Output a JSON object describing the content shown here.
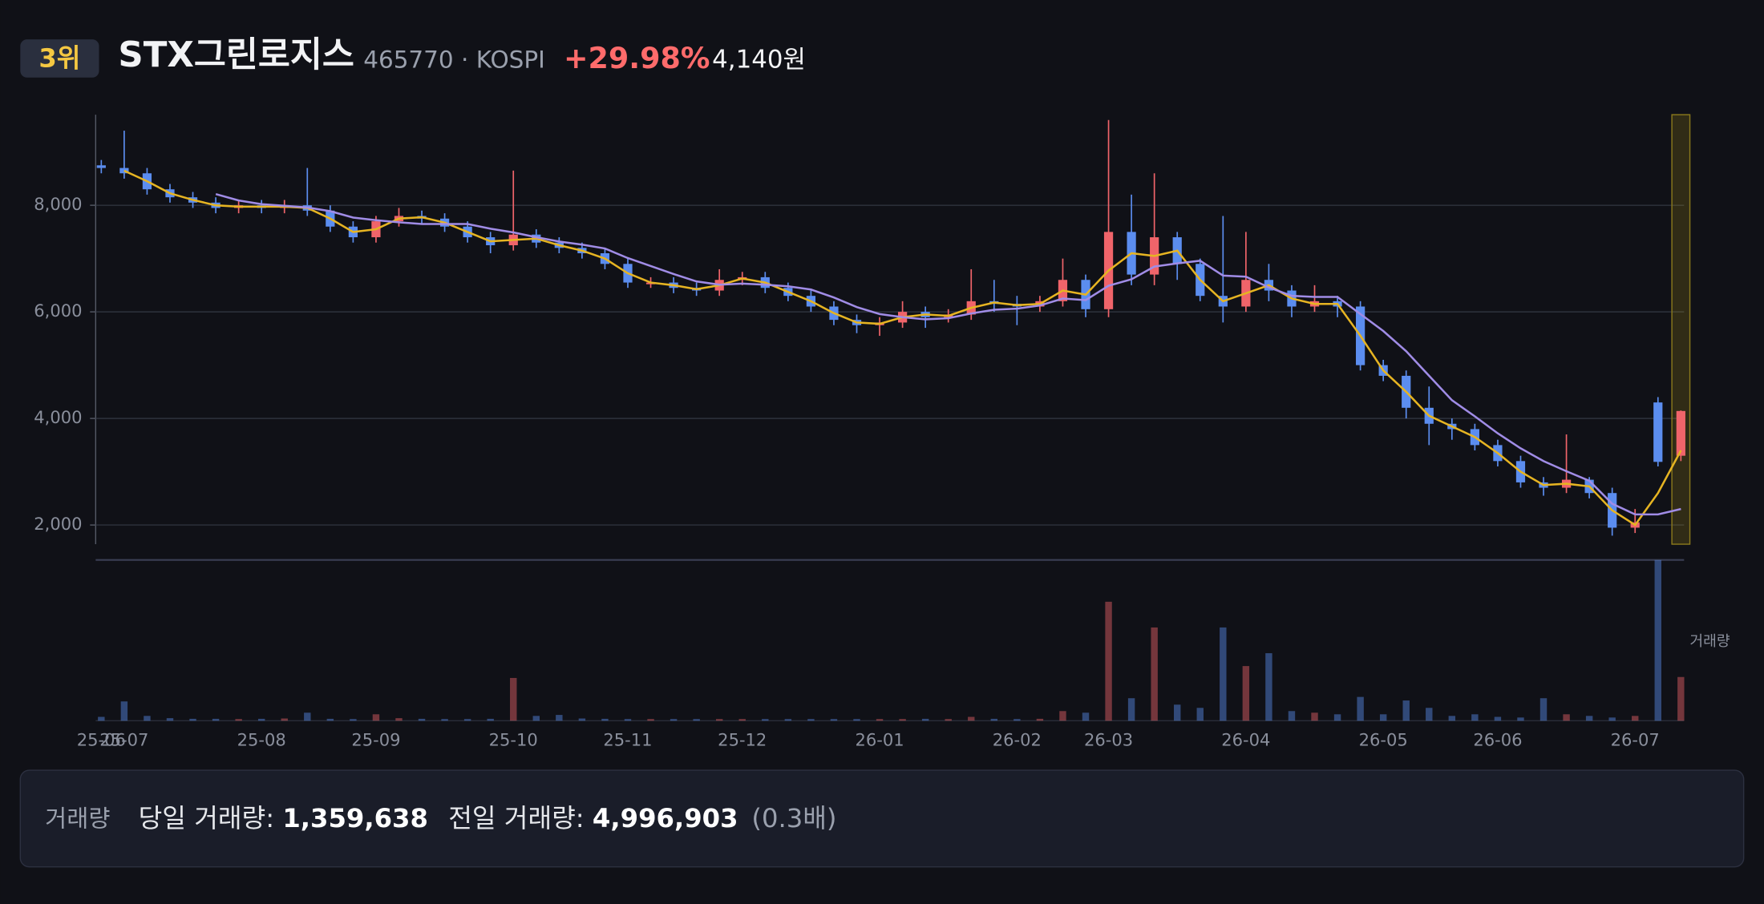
{
  "header": {
    "rank": "3위",
    "name": "STX그린로지스",
    "code": "465770 · KOSPI",
    "change": "+29.98%",
    "price": "4,140원"
  },
  "chart_data": {
    "type": "candlestick",
    "categories": [
      "25-06",
      "25-07",
      null,
      null,
      null,
      null,
      null,
      "25-08",
      null,
      null,
      null,
      null,
      "25-09",
      null,
      null,
      null,
      null,
      null,
      "25-10",
      null,
      null,
      null,
      null,
      "25-11",
      null,
      null,
      null,
      null,
      "25-12",
      null,
      null,
      null,
      null,
      null,
      "26-01",
      null,
      null,
      null,
      null,
      null,
      "26-02",
      null,
      null,
      null,
      "26-03",
      null,
      null,
      null,
      null,
      null,
      "26-04",
      null,
      null,
      null,
      null,
      null,
      "26-05",
      null,
      null,
      null,
      null,
      "26-06",
      null,
      null,
      null,
      null,
      null,
      "26-07",
      null,
      null
    ],
    "open": [
      8750,
      8700,
      8600,
      8300,
      8150,
      8050,
      7950,
      8000,
      7950,
      8000,
      7900,
      7600,
      7400,
      7700,
      7800,
      7750,
      7600,
      7400,
      7250,
      7450,
      7300,
      7200,
      7100,
      6900,
      6550,
      6550,
      6450,
      6400,
      6600,
      6650,
      6450,
      6300,
      6100,
      5850,
      5750,
      5800,
      6000,
      5900,
      5950,
      6200,
      6150,
      6100,
      6200,
      6600,
      6050,
      7500,
      6700,
      7400,
      6900,
      6300,
      6100,
      6600,
      6400,
      6100,
      6200,
      6100,
      5000,
      4800,
      4200,
      3900,
      3800,
      3500,
      3200,
      2800,
      2700,
      2850,
      2600,
      1950,
      4300,
      3300
    ],
    "high": [
      8850,
      9400,
      8700,
      8400,
      8250,
      8150,
      8100,
      8100,
      8100,
      8700,
      8000,
      7700,
      7800,
      7950,
      7900,
      7850,
      7700,
      7500,
      8650,
      7550,
      7400,
      7300,
      7200,
      7000,
      6650,
      6650,
      6550,
      6800,
      6750,
      6750,
      6550,
      6400,
      6200,
      5950,
      5900,
      6200,
      6100,
      6050,
      6800,
      6600,
      6300,
      6300,
      7000,
      6700,
      9600,
      8200,
      8600,
      7500,
      7000,
      7800,
      7500,
      6900,
      6500,
      6500,
      6300,
      6200,
      5100,
      4900,
      4600,
      4000,
      3900,
      3600,
      3300,
      2900,
      3700,
      2900,
      2700,
      2300,
      4400,
      4150
    ],
    "low": [
      8600,
      8500,
      8200,
      8050,
      7950,
      7850,
      7850,
      7850,
      7850,
      7800,
      7500,
      7300,
      7300,
      7600,
      7650,
      7500,
      7300,
      7100,
      7150,
      7200,
      7100,
      7000,
      6800,
      6450,
      6450,
      6350,
      6300,
      6300,
      6500,
      6350,
      6200,
      6000,
      5750,
      5600,
      5550,
      5700,
      5700,
      5800,
      5850,
      6000,
      5750,
      6000,
      6100,
      5900,
      5900,
      6500,
      6500,
      6600,
      6200,
      5800,
      6000,
      6200,
      5900,
      6000,
      5900,
      4900,
      4700,
      4000,
      3500,
      3600,
      3400,
      3100,
      2700,
      2550,
      2600,
      2500,
      1800,
      1850,
      3100,
      3200
    ],
    "close": [
      8700,
      8600,
      8300,
      8150,
      8050,
      7950,
      8000,
      7950,
      8000,
      7900,
      7600,
      7400,
      7700,
      7800,
      7750,
      7600,
      7400,
      7250,
      7450,
      7300,
      7200,
      7100,
      6900,
      6550,
      6550,
      6450,
      6400,
      6600,
      6650,
      6450,
      6300,
      6100,
      5850,
      5750,
      5800,
      6000,
      5900,
      5950,
      6200,
      6150,
      6100,
      6200,
      6600,
      6050,
      7500,
      6700,
      7400,
      6900,
      6300,
      6100,
      6600,
      6400,
      6100,
      6200,
      6100,
      5000,
      4800,
      4200,
      3900,
      3800,
      3500,
      3200,
      2800,
      2700,
      2850,
      2600,
      1950,
      2050,
      3185,
      4140
    ],
    "up_color": "#f0646a",
    "down_color": "#5b8def",
    "ylim": [
      1640,
      9700
    ],
    "yticks": [
      {
        "value": 2000,
        "label": "2,000"
      },
      {
        "value": 4000,
        "label": "4,000"
      },
      {
        "value": 6000,
        "label": "6,000"
      },
      {
        "value": 8000,
        "label": "8,000"
      }
    ],
    "grid": true,
    "moving_averages": [
      {
        "color": "#e6b422",
        "values": [
          null,
          8650,
          8450,
          8225,
          8100,
          8000,
          7975,
          7975,
          7975,
          7950,
          7750,
          7500,
          7550,
          7750,
          7775,
          7675,
          7500,
          7325,
          7350,
          7375,
          7250,
          7150,
          7000,
          6725,
          6550,
          6500,
          6425,
          6500,
          6625,
          6550,
          6375,
          6200,
          5975,
          5800,
          5775,
          5900,
          5950,
          5925,
          6075,
          6175,
          6125,
          6150,
          6400,
          6325,
          6775,
          7100,
          7050,
          7150,
          6600,
          6200,
          6350,
          6500,
          6250,
          6150,
          6150,
          5550,
          4900,
          4500,
          4050,
          3850,
          3650,
          3350,
          3000,
          2750,
          2775,
          2725,
          2275,
          2000,
          2600,
          3400
        ]
      },
      {
        "color": "#a08ce6",
        "values": [
          null,
          null,
          null,
          null,
          null,
          8210,
          8090,
          8020,
          7990,
          7960,
          7890,
          7770,
          7720,
          7680,
          7650,
          7650,
          7650,
          7560,
          7490,
          7400,
          7320,
          7260,
          7190,
          7010,
          6860,
          6710,
          6570,
          6510,
          6530,
          6510,
          6480,
          6420,
          6270,
          6090,
          5960,
          5900,
          5860,
          5880,
          5970,
          6040,
          6060,
          6120,
          6250,
          6220,
          6490,
          6610,
          6850,
          6910,
          6960,
          6680,
          6660,
          6460,
          6300,
          6280,
          6280,
          5960,
          5640,
          5260,
          4800,
          4340,
          4040,
          3720,
          3440,
          3200,
          3010,
          2830,
          2400,
          2200,
          2200,
          2300
        ]
      }
    ],
    "volume": {
      "label": "거래량",
      "ylim": [
        0,
        5000000
      ],
      "values": [
        120000,
        600000,
        150000,
        80000,
        60000,
        60000,
        50000,
        60000,
        70000,
        250000,
        60000,
        50000,
        200000,
        80000,
        60000,
        50000,
        50000,
        60000,
        1330000,
        150000,
        180000,
        70000,
        60000,
        50000,
        40000,
        40000,
        40000,
        50000,
        40000,
        40000,
        40000,
        40000,
        40000,
        50000,
        40000,
        40000,
        60000,
        50000,
        120000,
        60000,
        50000,
        60000,
        300000,
        250000,
        3700000,
        700000,
        2900000,
        500000,
        400000,
        2900000,
        1700000,
        2100000,
        300000,
        250000,
        200000,
        740000,
        200000,
        630000,
        400000,
        150000,
        200000,
        120000,
        100000,
        700000,
        200000,
        150000,
        100000,
        150000,
        4996903,
        1359638
      ]
    }
  },
  "footer": {
    "label": "거래량",
    "today_label": "당일 거래량:",
    "today": "1,359,638",
    "prev_label": "전일 거래량:",
    "prev": "4,996,903",
    "ratio": "(0.3배)"
  }
}
